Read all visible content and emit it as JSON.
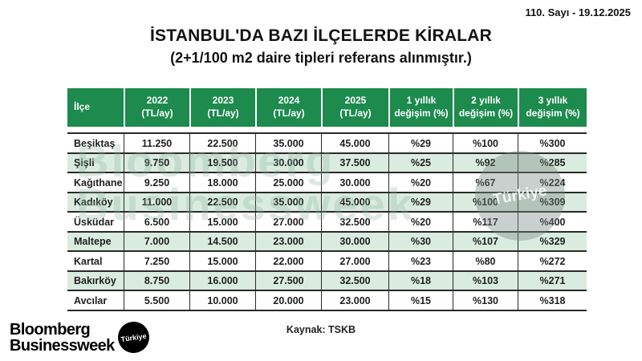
{
  "meta": {
    "issue_label": "110. Sayı - 19.12.2025"
  },
  "header": {
    "title": "İSTANBUL'DA BAZI İLÇELERDE KİRALAR",
    "subtitle": "(2+1/100 m2 daire tipleri referans alınmıştır.)"
  },
  "chart_data": {
    "type": "table",
    "title": "İSTANBUL'DA BAZI İLÇELERDE KİRALAR",
    "subtitle": "(2+1/100 m2 daire tipleri referans alınmıştır.)",
    "columns": [
      "İlçe",
      "2022 (TL/ay)",
      "2023 (TL/ay)",
      "2024 (TL/ay)",
      "2025 (TL/ay)",
      "1 yıllık değişim (%)",
      "2 yıllık değişim (%)",
      "3 yıllık değişim (%)"
    ],
    "rows": [
      [
        "Beşiktaş",
        "11.250",
        "22.500",
        "35.000",
        "45.000",
        "%29",
        "%100",
        "%300"
      ],
      [
        "Şişli",
        "9.750",
        "19.500",
        "30.000",
        "37.500",
        "%25",
        "%92",
        "%285"
      ],
      [
        "Kağıthane",
        "9.250",
        "18.000",
        "25.000",
        "30.000",
        "%20",
        "%67",
        "%224"
      ],
      [
        "Kadıköy",
        "11.000",
        "22.500",
        "35.000",
        "45.000",
        "%29",
        "%100",
        "%309"
      ],
      [
        "Üsküdar",
        "6.500",
        "15.000",
        "27.000",
        "32.500",
        "%20",
        "%117",
        "%400"
      ],
      [
        "Maltepe",
        "7.000",
        "14.500",
        "23.000",
        "30.000",
        "%30",
        "%107",
        "%329"
      ],
      [
        "Kartal",
        "7.250",
        "15.000",
        "22.000",
        "27.000",
        "%23",
        "%80",
        "%272"
      ],
      [
        "Bakırköy",
        "8.750",
        "16.000",
        "27.500",
        "32.500",
        "%18",
        "%103",
        "%271"
      ],
      [
        "Avcılar",
        "5.500",
        "10.000",
        "20.000",
        "23.000",
        "%15",
        "%130",
        "%318"
      ]
    ],
    "source": "Kaynak: TSKB"
  },
  "table": {
    "header_cells": [
      {
        "line1": "İlçe",
        "line2": ""
      },
      {
        "line1": "2022",
        "line2": "(TL/ay)"
      },
      {
        "line1": "2023",
        "line2": "(TL/ay)"
      },
      {
        "line1": "2024",
        "line2": "(TL/ay)"
      },
      {
        "line1": "2025",
        "line2": "(TL/ay)"
      },
      {
        "line1": "1 yıllık",
        "line2": "değişim (%)"
      },
      {
        "line1": "2 yıllık",
        "line2": "değişim (%)"
      },
      {
        "line1": "3 yıllık",
        "line2": "değişim (%)"
      }
    ]
  },
  "footer": {
    "source_label": "Kaynak: TSKB",
    "logo": {
      "line1": "Bloomberg",
      "line2": "Businessweek",
      "badge": "Türkiye"
    }
  },
  "watermark": {
    "line1": "Bloomberg",
    "line2": "Businessweek",
    "badge": "Türkiye"
  },
  "colors": {
    "header_green": "#1d8a4e",
    "row_green": "#d9ecdf",
    "border_dark": "#2a2a2a"
  }
}
